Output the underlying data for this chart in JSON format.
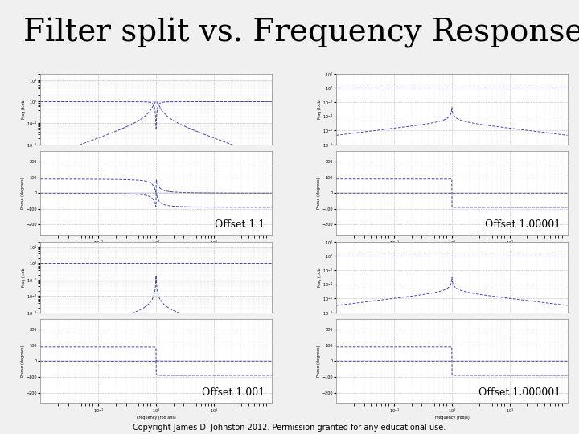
{
  "title": "Filter split vs. Frequency Response",
  "title_fontsize": 28,
  "title_font": "serif",
  "copyright": "Copyright James D. Johnston 2012. Permission granted for any educational use.",
  "copyright_fontsize": 7,
  "background_color": "#f0f0f0",
  "panel_bg": "#ffffff",
  "offsets": [
    1.1,
    1.00001,
    1.001,
    1.000001
  ],
  "offset_labels": [
    "Offset 1.1",
    "Offset 1.00001",
    "Offset 1.001",
    "Offset 1.000001"
  ],
  "line_color": "#4444aa",
  "grid_color": "#999999",
  "freq_label_left": "Frequency (rod ans)",
  "freq_label_right": "Frequency (rod/s)",
  "mag_label": "Mag (t.db",
  "phase_label": "Phase (degrees)",
  "panel_edge_color": "#888888"
}
